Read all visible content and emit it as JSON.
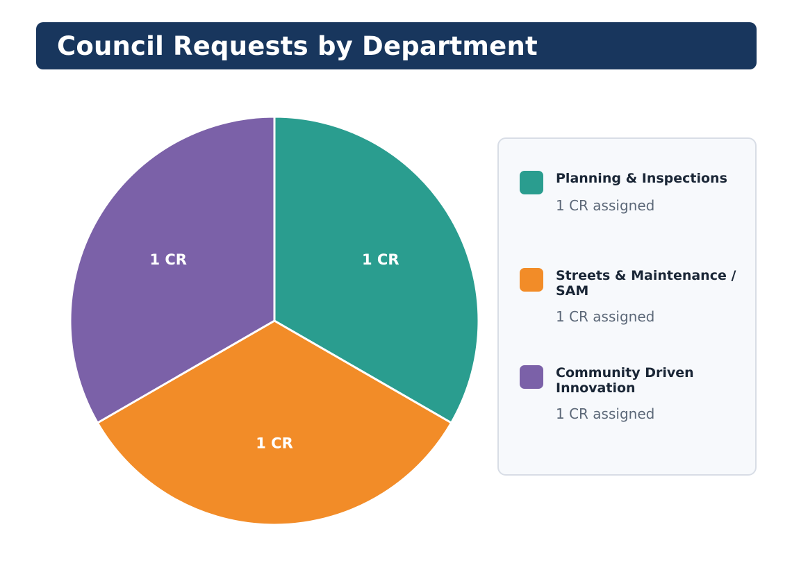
{
  "title": "Council Requests by Department",
  "chart_data": {
    "type": "pie",
    "title": "Council Requests by Department",
    "categories": [
      "Planning & Inspections",
      "Streets & Maintenance / SAM",
      "Community Driven Innovation"
    ],
    "values": [
      1,
      1,
      1
    ],
    "slice_labels": [
      "1 CR",
      "1 CR",
      "1 CR"
    ],
    "colors": [
      "#2a9d8f",
      "#f28c28",
      "#7b61a8"
    ],
    "legend_placement": "right",
    "legend": [
      {
        "name": "Planning & Inspections",
        "count": "1 CR assigned"
      },
      {
        "name": "Streets & Maintenance / SAM",
        "count": "1 CR assigned"
      },
      {
        "name": "Community Driven Innovation",
        "count": "1 CR assigned"
      }
    ]
  }
}
